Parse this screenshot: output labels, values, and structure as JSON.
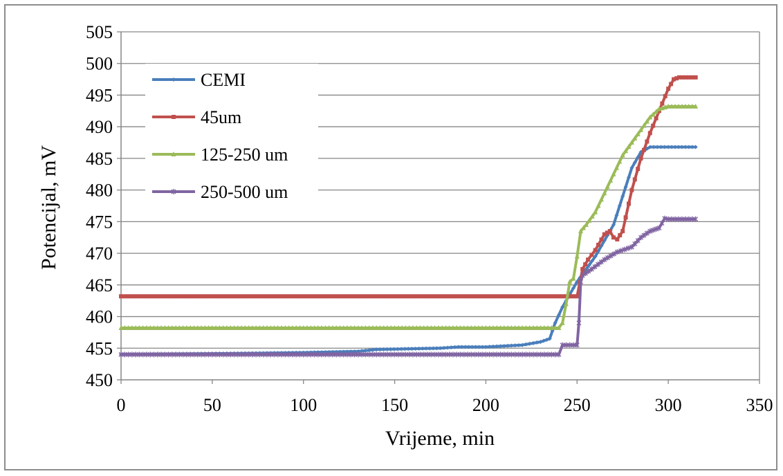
{
  "chart_data": {
    "type": "line",
    "title": "",
    "xlabel": "Vrijeme, min",
    "ylabel": "Potencijal, mV",
    "xlim": [
      0,
      350
    ],
    "ylim": [
      450,
      505
    ],
    "xticks": [
      0,
      50,
      100,
      150,
      200,
      250,
      300,
      350
    ],
    "yticks": [
      450,
      455,
      460,
      465,
      470,
      475,
      480,
      485,
      490,
      495,
      500,
      505
    ],
    "grid": "horizontal",
    "legend_position": "top-left",
    "series": [
      {
        "name": "CEMI",
        "color": "#4a7ebb",
        "marker": "diamond",
        "x": [
          0,
          70,
          100,
          130,
          140,
          175,
          185,
          200,
          220,
          230,
          235,
          238,
          242,
          246,
          250,
          255,
          260,
          265,
          270,
          275,
          280,
          285,
          290,
          300,
          315
        ],
        "y": [
          454,
          454.2,
          454.3,
          454.5,
          454.8,
          455,
          455.2,
          455.2,
          455.5,
          456,
          456.5,
          459,
          461.5,
          463.5,
          465.5,
          467.5,
          469.5,
          472,
          474.5,
          479,
          483.5,
          486,
          486.8,
          486.8,
          486.8
        ]
      },
      {
        "name": "45um",
        "color": "#c0504d",
        "marker": "square",
        "x": [
          0,
          250,
          253,
          256,
          260,
          265,
          268,
          270,
          272,
          275,
          280,
          285,
          290,
          295,
          300,
          303,
          306,
          315
        ],
        "y": [
          463.2,
          463.2,
          467.5,
          469,
          470.5,
          473,
          473.5,
          472.5,
          472.2,
          473.5,
          480,
          485,
          489,
          492.5,
          496,
          497.5,
          497.8,
          497.8
        ]
      },
      {
        "name": "125-250 um",
        "color": "#9bbb59",
        "marker": "triangle",
        "x": [
          0,
          240,
          242,
          244,
          246,
          248,
          250,
          252,
          255,
          260,
          265,
          270,
          275,
          280,
          285,
          290,
          295,
          300,
          315
        ],
        "y": [
          458.2,
          458.2,
          459,
          462,
          465.5,
          466,
          469.5,
          473.5,
          474.5,
          476.5,
          479.5,
          482.5,
          485.5,
          487.5,
          489.5,
          491.5,
          492.8,
          493.2,
          493.2
        ]
      },
      {
        "name": "250-500 um",
        "color": "#8064a2",
        "marker": "star",
        "x": [
          0,
          240,
          242,
          250,
          251,
          252,
          253,
          258,
          265,
          272,
          280,
          285,
          290,
          295,
          298,
          300,
          315
        ],
        "y": [
          454,
          454,
          455.5,
          455.5,
          459,
          465.5,
          466.5,
          467.5,
          469,
          470.2,
          471,
          472.5,
          473.5,
          474,
          475.5,
          475.4,
          475.4
        ]
      }
    ]
  }
}
